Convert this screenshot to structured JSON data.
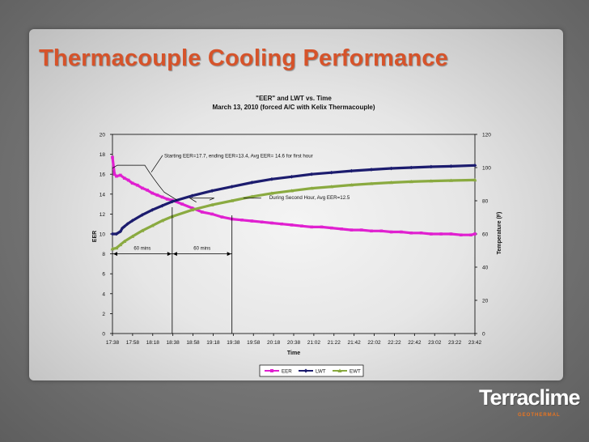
{
  "slide": {
    "title": "Thermacouple Cooling Performance",
    "title_color": "#d6532a"
  },
  "logo": {
    "name": "Terraclime",
    "sub": "GEOTHERMAL",
    "accent": "#e87522"
  },
  "chart_data": {
    "type": "line",
    "title": "\"EER\" and LWT vs. Time",
    "subtitle": "March 13, 2010 (forced A/C with Kelix Thermacouple)",
    "xlabel": "Time",
    "ylabel_left": "EER",
    "ylabel_right": "Temperature (F)",
    "x_tick_labels": [
      "17:38",
      "17:58",
      "18:18",
      "18:38",
      "18:58",
      "19:18",
      "19:38",
      "19:58",
      "20:18",
      "20:38",
      "21:02",
      "21:22",
      "21:42",
      "22:02",
      "22:22",
      "22:42",
      "23:02",
      "23:22",
      "23:42"
    ],
    "x_minutes_range": [
      0,
      364
    ],
    "ylim_left": [
      0,
      20
    ],
    "yticks_left": [
      "0",
      "2",
      "4",
      "6",
      "8",
      "10",
      "12",
      "14",
      "16",
      "18",
      "20"
    ],
    "ylim_right": [
      0,
      120
    ],
    "yticks_right": [
      "0",
      "20",
      "40",
      "60",
      "80",
      "100",
      "120"
    ],
    "legend_position": "bottom",
    "series": [
      {
        "name": "EER",
        "axis": "left",
        "color": "#e020d0",
        "marker": "square",
        "x_minutes": [
          0,
          2,
          4,
          8,
          12,
          16,
          20,
          25,
          30,
          35,
          40,
          45,
          50,
          55,
          60,
          70,
          80,
          90,
          100,
          110,
          120,
          130,
          140,
          150,
          160,
          170,
          180,
          190,
          200,
          210,
          220,
          230,
          240,
          250,
          260,
          270,
          280,
          290,
          300,
          310,
          320,
          330,
          340,
          350,
          360,
          364
        ],
        "values": [
          17.7,
          16.0,
          15.8,
          15.9,
          15.6,
          15.4,
          15.1,
          14.9,
          14.6,
          14.4,
          14.1,
          13.9,
          13.7,
          13.5,
          13.4,
          13.0,
          12.6,
          12.2,
          12.0,
          11.7,
          11.5,
          11.4,
          11.3,
          11.2,
          11.1,
          11.0,
          10.9,
          10.8,
          10.7,
          10.7,
          10.6,
          10.5,
          10.4,
          10.4,
          10.3,
          10.3,
          10.2,
          10.2,
          10.1,
          10.1,
          10.0,
          10.0,
          10.0,
          9.9,
          9.9,
          10.0
        ]
      },
      {
        "name": "LWT",
        "axis": "right",
        "color": "#1c1c6e",
        "marker": "diamond",
        "x_minutes": [
          0,
          4,
          8,
          10,
          12,
          15,
          20,
          30,
          40,
          50,
          60,
          80,
          100,
          120,
          140,
          160,
          180,
          200,
          220,
          240,
          260,
          280,
          300,
          320,
          340,
          364
        ],
        "values": [
          60.0,
          60.0,
          61.5,
          63.5,
          64.5,
          66.0,
          68.0,
          71.5,
          74.5,
          77.0,
          79.5,
          83.0,
          86.0,
          88.5,
          91.0,
          93.0,
          94.5,
          96.0,
          97.0,
          98.0,
          98.8,
          99.5,
          100.0,
          100.5,
          100.8,
          101.3
        ]
      },
      {
        "name": "EWT",
        "axis": "right",
        "color": "#8aaa40",
        "marker": "triangle",
        "x_minutes": [
          0,
          4,
          8,
          12,
          20,
          30,
          40,
          50,
          60,
          80,
          100,
          120,
          140,
          160,
          180,
          200,
          220,
          240,
          260,
          280,
          300,
          320,
          340,
          364
        ],
        "values": [
          51.0,
          51.5,
          53.5,
          55.5,
          58.5,
          62.0,
          65.0,
          68.0,
          70.5,
          74.5,
          77.5,
          80.0,
          82.5,
          84.5,
          86.0,
          87.5,
          88.5,
          89.5,
          90.3,
          91.0,
          91.5,
          91.9,
          92.2,
          92.5
        ]
      }
    ],
    "annotations": {
      "starting": "Starting EER=17.7, ending EER=13.4, Avg EER= 14.6 for first hour",
      "second_hour": "During Second Hour, Avg EER=12.5",
      "interval_1": "60 mins",
      "interval_2": "60 mins",
      "marker_minutes": [
        60,
        120
      ]
    }
  }
}
